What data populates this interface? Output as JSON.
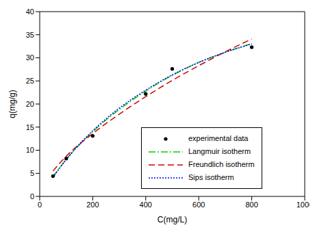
{
  "chart_data": {
    "type": "line",
    "xlabel": "C(mg/L)",
    "ylabel": "q(mg/g)",
    "xlim": [
      0,
      1000
    ],
    "xticks": [
      0,
      200,
      400,
      600,
      800,
      1000
    ],
    "ylim": [
      0,
      40
    ],
    "yticks": [
      0,
      5,
      10,
      15,
      20,
      25,
      30,
      35,
      40
    ],
    "grid": false,
    "legend": "lower right",
    "series": [
      {
        "name": "experimental data",
        "type": "scatter",
        "marker": "circle",
        "color": "#000000",
        "x": [
          50,
          100,
          200,
          400,
          500,
          800
        ],
        "values": [
          4.4,
          8.2,
          13.1,
          22.2,
          27.6,
          32.3
        ]
      },
      {
        "name": "Langmuir isotherm",
        "type": "line",
        "line_style": "dashdot",
        "color": "#00cc00",
        "x": [
          50,
          100,
          200,
          300,
          400,
          500,
          600,
          700,
          800
        ],
        "values": [
          4.3,
          8.0,
          14.0,
          18.8,
          22.8,
          26.2,
          29.0,
          31.2,
          33.1
        ]
      },
      {
        "name": "Freundlich isotherm",
        "type": "line",
        "line_style": "dashed",
        "color": "#cc0000",
        "x": [
          50,
          100,
          200,
          300,
          400,
          500,
          600,
          700,
          800
        ],
        "values": [
          5.5,
          8.7,
          13.6,
          17.8,
          21.6,
          25.1,
          28.3,
          31.3,
          34.1
        ]
      },
      {
        "name": "Sips isotherm",
        "type": "line",
        "line_style": "dotted",
        "color": "#0000ff",
        "x": [
          50,
          100,
          200,
          300,
          400,
          500,
          600,
          700,
          800
        ],
        "values": [
          4.1,
          8.0,
          14.2,
          19.1,
          23.0,
          26.3,
          29.0,
          31.2,
          33.0
        ]
      }
    ]
  }
}
